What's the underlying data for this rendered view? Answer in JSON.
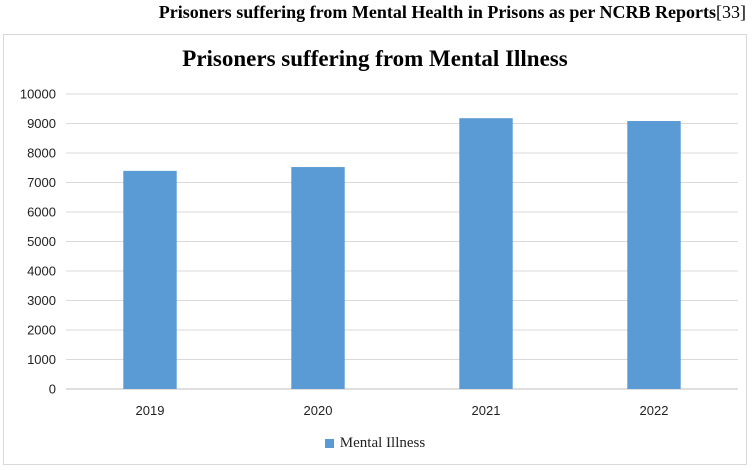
{
  "caption": {
    "text": "Prisoners suffering from Mental Health in Prisons as per NCRB Reports",
    "ref": "[33]"
  },
  "chart_data": {
    "type": "bar",
    "title": "Prisoners suffering from Mental Illness",
    "xlabel": "",
    "ylabel": "",
    "categories": [
      "2019",
      "2020",
      "2021",
      "2022"
    ],
    "series": [
      {
        "name": "Mental Illness",
        "values": [
          7394,
          7524,
          9180,
          9084
        ],
        "color": "#5b9bd5"
      }
    ],
    "ylim": [
      0,
      10000
    ],
    "yticks": [
      0,
      1000,
      2000,
      3000,
      4000,
      5000,
      6000,
      7000,
      8000,
      9000,
      10000
    ],
    "grid": true,
    "legend": "bottom"
  },
  "colors": {
    "gridline": "#d9d9d9",
    "axis": "#bfbfbf"
  }
}
